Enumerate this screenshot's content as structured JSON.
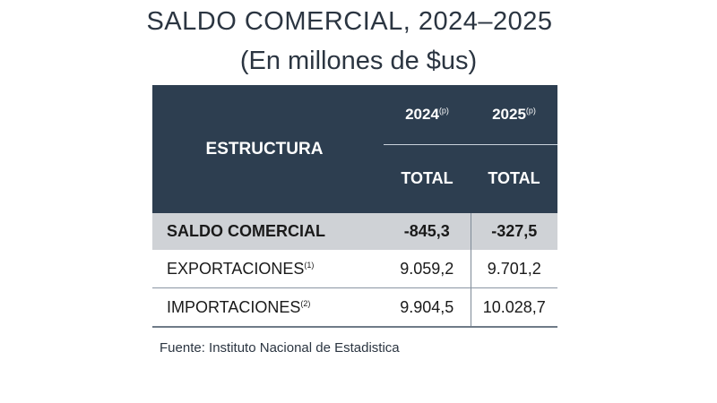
{
  "title": "SALDO COMERCIAL, 2024‒2025",
  "subtitle": "(En millones de $us)",
  "table": {
    "header": {
      "estructura": "ESTRUCTURA",
      "year_2024": "2024",
      "year_2025": "2025",
      "year_note": "(p)",
      "total_2024": "TOTAL",
      "total_2025": "TOTAL"
    },
    "rows": [
      {
        "label": "SALDO COMERCIAL",
        "note": "",
        "v2024": "-845,3",
        "v2025": "-327,5"
      },
      {
        "label": "EXPORTACIONES",
        "note": "(1)",
        "v2024": "9.059,2",
        "v2025": "9.701,2"
      },
      {
        "label": "IMPORTACIONES",
        "note": "(2)",
        "v2024": "9.904,5",
        "v2025": "10.028,7"
      }
    ]
  },
  "source": "Fuente: Instituto Nacional de Estadistica",
  "colors": {
    "header_bg": "#2d3e50",
    "highlight_row_bg": "#cfd2d6"
  }
}
